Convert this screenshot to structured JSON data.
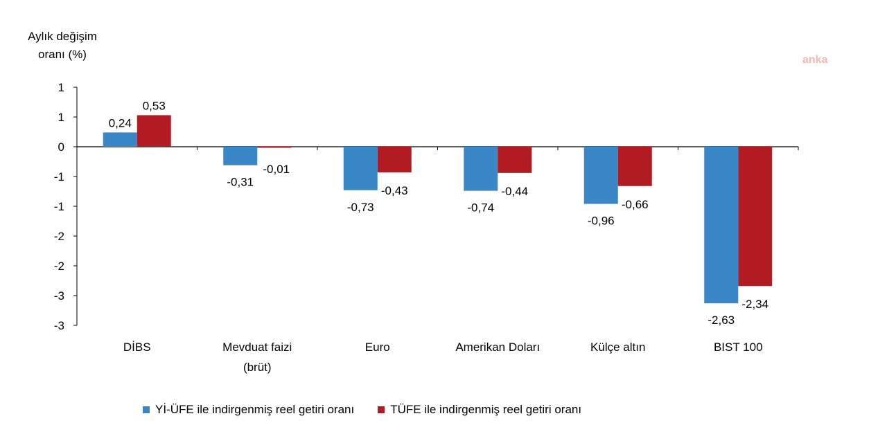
{
  "chart_data": {
    "type": "bar",
    "ylabel_lines": [
      "Aylık değişim",
      "oranı (%)"
    ],
    "watermark": "anka",
    "categories": [
      "DİBS",
      "Mevduat faizi (brüt)",
      "Euro",
      "Amerikan Doları",
      "Külçe altın",
      "BIST 100"
    ],
    "category_lines": [
      [
        "DİBS"
      ],
      [
        "Mevduat faizi",
        "(brüt)"
      ],
      [
        "Euro"
      ],
      [
        "Amerikan Doları"
      ],
      [
        "Külçe altın"
      ],
      [
        "BIST 100"
      ]
    ],
    "series": [
      {
        "name": "Yİ-ÜFE ile indirgenmiş reel getiri oranı",
        "color": "#3a87c8",
        "values": [
          0.24,
          -0.31,
          -0.73,
          -0.74,
          -0.96,
          -2.63
        ],
        "labels": [
          "0,24",
          "-0,31",
          "-0,73",
          "-0,74",
          "-0,96",
          "-2,63"
        ]
      },
      {
        "name": "TÜFE ile indirgenmiş reel getiri oranı",
        "color": "#b31b23",
        "values": [
          0.53,
          -0.01,
          -0.43,
          -0.44,
          -0.66,
          -2.34
        ],
        "labels": [
          "0,53",
          "-0,01",
          "-0,43",
          "-0,44",
          "-0,66",
          "-2,34"
        ]
      }
    ],
    "ylim": [
      -3,
      1
    ],
    "yticks": [
      1,
      0.5,
      0,
      -0.5,
      -1,
      -1.5,
      -2,
      -2.5,
      -3
    ],
    "ytick_labels": [
      "1",
      "1",
      "0",
      "-1",
      "-1",
      "-2",
      "-2",
      "-3",
      "-3"
    ],
    "legend_position": "bottom"
  }
}
